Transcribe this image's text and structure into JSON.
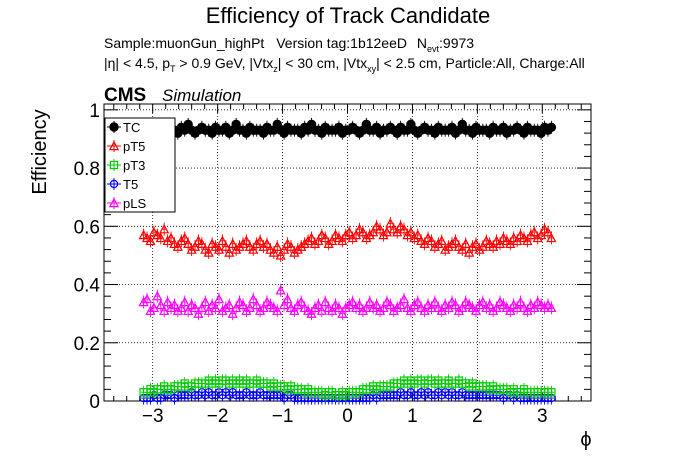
{
  "chart_data": {
    "type": "scatter",
    "title": "Efficiency of Track Candidate",
    "subtitle_line1": {
      "sample_text": "Sample:muonGun_highPt",
      "version_text": "Version tag:1b12eeD",
      "nevt_prefix": "N",
      "nevt_sub": "evt",
      "nevt_value": ":9973"
    },
    "subtitle_line2": {
      "eta_text": "|η| < 4.5, p",
      "pt_sub": "T",
      "pt_cut": " > 0.9 GeV, |Vtx",
      "vtxz_sub": "z",
      "vtxz_cut": "| < 30 cm, |Vtx",
      "vtxxy_sub": "xy",
      "vtxxy_cut": "| < 2.5 cm, Particle:All, Charge:All"
    },
    "cms_label": "CMS",
    "cms_sublabel": "Simulation",
    "xlabel": "ϕ",
    "ylabel": "Efficiency",
    "xlim": [
      -3.75,
      3.75
    ],
    "ylim": [
      0,
      1.02
    ],
    "x_ticks": [
      -3,
      -2,
      -1,
      0,
      1,
      2,
      3
    ],
    "x_tick_labels": [
      "−3",
      "−2",
      "−1",
      "0",
      "1",
      "2",
      "3"
    ],
    "y_ticks": [
      0,
      0.2,
      0.4,
      0.6,
      0.8,
      1
    ],
    "y_tick_labels": [
      "0",
      "0.2",
      "0.4",
      "0.6",
      "0.8",
      "1"
    ],
    "grid": true,
    "legend_position": "top-left",
    "series": [
      {
        "name": "TC",
        "color": "#000000",
        "marker": "filled-circle",
        "x_range": [
          -3.14,
          3.14
        ],
        "n_points": 120,
        "values": [
          0.93,
          0.94,
          0.92,
          0.93,
          0.95,
          0.93,
          0.92,
          0.94,
          0.93,
          0.93,
          0.92,
          0.94,
          0.93,
          0.95,
          0.93,
          0.92,
          0.93,
          0.94,
          0.93,
          0.93,
          0.92,
          0.94,
          0.93,
          0.93,
          0.94,
          0.92,
          0.93,
          0.95,
          0.93,
          0.93,
          0.92,
          0.94,
          0.93,
          0.93,
          0.93,
          0.92,
          0.94,
          0.93,
          0.93,
          0.95,
          0.93,
          0.92,
          0.94,
          0.93,
          0.93,
          0.93,
          0.92,
          0.94,
          0.93,
          0.95,
          0.93,
          0.93,
          0.92,
          0.94,
          0.93,
          0.93,
          0.93,
          0.94,
          0.92,
          0.93,
          0.93,
          0.94,
          0.93,
          0.92,
          0.93,
          0.95,
          0.93,
          0.93,
          0.94,
          0.92,
          0.93,
          0.93,
          0.94,
          0.93,
          0.92,
          0.94,
          0.93,
          0.93,
          0.95,
          0.93,
          0.92,
          0.93,
          0.94,
          0.93,
          0.93,
          0.92,
          0.94,
          0.93,
          0.93,
          0.93,
          0.94,
          0.92,
          0.93,
          0.95,
          0.93,
          0.93,
          0.92,
          0.94,
          0.93,
          0.93,
          0.93,
          0.92,
          0.94,
          0.93,
          0.93,
          0.94,
          0.92,
          0.93,
          0.93,
          0.94,
          0.93,
          0.92,
          0.94,
          0.93,
          0.93,
          0.93,
          0.92,
          0.94,
          0.93,
          0.94
        ]
      },
      {
        "name": "pT5",
        "color": "#ff0000",
        "marker": "open-triangle-up",
        "x_range": [
          -3.14,
          3.14
        ],
        "n_points": 120,
        "values": [
          0.57,
          0.56,
          0.55,
          0.58,
          0.57,
          0.56,
          0.59,
          0.55,
          0.56,
          0.54,
          0.53,
          0.55,
          0.56,
          0.54,
          0.52,
          0.53,
          0.55,
          0.54,
          0.52,
          0.51,
          0.54,
          0.53,
          0.52,
          0.55,
          0.53,
          0.51,
          0.54,
          0.52,
          0.53,
          0.54,
          0.55,
          0.53,
          0.52,
          0.54,
          0.55,
          0.53,
          0.54,
          0.52,
          0.51,
          0.53,
          0.5,
          0.52,
          0.54,
          0.53,
          0.51,
          0.52,
          0.53,
          0.54,
          0.55,
          0.56,
          0.54,
          0.55,
          0.57,
          0.56,
          0.54,
          0.55,
          0.57,
          0.56,
          0.55,
          0.57,
          0.58,
          0.56,
          0.57,
          0.59,
          0.58,
          0.56,
          0.57,
          0.58,
          0.6,
          0.59,
          0.57,
          0.58,
          0.61,
          0.59,
          0.58,
          0.6,
          0.59,
          0.57,
          0.58,
          0.56,
          0.57,
          0.55,
          0.54,
          0.56,
          0.55,
          0.53,
          0.54,
          0.55,
          0.52,
          0.53,
          0.54,
          0.55,
          0.53,
          0.52,
          0.54,
          0.51,
          0.53,
          0.54,
          0.52,
          0.53,
          0.55,
          0.54,
          0.53,
          0.55,
          0.54,
          0.56,
          0.55,
          0.54,
          0.56,
          0.55,
          0.57,
          0.56,
          0.55,
          0.57,
          0.58,
          0.56,
          0.57,
          0.59,
          0.58,
          0.56
        ]
      },
      {
        "name": "pT3",
        "color": "#00cc00",
        "marker": "open-square",
        "x_range": [
          -3.14,
          3.14
        ],
        "n_points": 120,
        "values": [
          0.03,
          0.03,
          0.04,
          0.03,
          0.04,
          0.04,
          0.05,
          0.04,
          0.04,
          0.05,
          0.05,
          0.05,
          0.06,
          0.05,
          0.05,
          0.06,
          0.06,
          0.06,
          0.06,
          0.07,
          0.06,
          0.07,
          0.06,
          0.07,
          0.07,
          0.06,
          0.07,
          0.06,
          0.07,
          0.06,
          0.07,
          0.06,
          0.06,
          0.07,
          0.06,
          0.06,
          0.06,
          0.05,
          0.06,
          0.05,
          0.05,
          0.05,
          0.04,
          0.05,
          0.04,
          0.04,
          0.04,
          0.03,
          0.04,
          0.03,
          0.03,
          0.03,
          0.03,
          0.02,
          0.03,
          0.03,
          0.02,
          0.02,
          0.03,
          0.02,
          0.03,
          0.03,
          0.03,
          0.03,
          0.04,
          0.04,
          0.04,
          0.05,
          0.04,
          0.05,
          0.05,
          0.05,
          0.05,
          0.06,
          0.06,
          0.06,
          0.07,
          0.06,
          0.07,
          0.06,
          0.07,
          0.07,
          0.06,
          0.07,
          0.07,
          0.06,
          0.07,
          0.06,
          0.06,
          0.07,
          0.06,
          0.06,
          0.07,
          0.06,
          0.06,
          0.05,
          0.06,
          0.05,
          0.05,
          0.05,
          0.05,
          0.04,
          0.05,
          0.04,
          0.04,
          0.04,
          0.04,
          0.03,
          0.04,
          0.03,
          0.03,
          0.04,
          0.03,
          0.03,
          0.03,
          0.03,
          0.03,
          0.03,
          0.03,
          0.03
        ]
      },
      {
        "name": "T5",
        "color": "#0000ff",
        "marker": "open-circle",
        "x_range": [
          -3.14,
          3.14
        ],
        "n_points": 120,
        "values": [
          0.01,
          0.01,
          0.01,
          0.02,
          0.01,
          0.01,
          0.02,
          0.02,
          0.02,
          0.01,
          0.02,
          0.02,
          0.02,
          0.02,
          0.03,
          0.02,
          0.02,
          0.03,
          0.02,
          0.03,
          0.02,
          0.02,
          0.03,
          0.02,
          0.03,
          0.02,
          0.03,
          0.02,
          0.02,
          0.02,
          0.03,
          0.02,
          0.02,
          0.02,
          0.03,
          0.02,
          0.02,
          0.02,
          0.02,
          0.02,
          0.02,
          0.01,
          0.02,
          0.02,
          0.01,
          0.01,
          0.01,
          0.01,
          0.01,
          0.01,
          0.01,
          0.01,
          0.01,
          0.01,
          0.01,
          0.01,
          0.01,
          0.01,
          0.01,
          0.01,
          0.01,
          0.01,
          0.01,
          0.01,
          0.01,
          0.01,
          0.01,
          0.02,
          0.01,
          0.02,
          0.02,
          0.02,
          0.02,
          0.02,
          0.02,
          0.03,
          0.02,
          0.02,
          0.03,
          0.02,
          0.02,
          0.03,
          0.02,
          0.03,
          0.02,
          0.02,
          0.03,
          0.02,
          0.03,
          0.02,
          0.03,
          0.02,
          0.02,
          0.03,
          0.02,
          0.02,
          0.02,
          0.02,
          0.02,
          0.02,
          0.02,
          0.02,
          0.02,
          0.02,
          0.02,
          0.01,
          0.02,
          0.02,
          0.01,
          0.02,
          0.01,
          0.01,
          0.01,
          0.01,
          0.01,
          0.01,
          0.01,
          0.01,
          0.01,
          0.01
        ]
      },
      {
        "name": "pLS",
        "color": "#ff00ff",
        "marker": "open-triangle-up",
        "x_range": [
          -3.14,
          3.14
        ],
        "n_points": 120,
        "values": [
          0.34,
          0.35,
          0.31,
          0.32,
          0.36,
          0.33,
          0.31,
          0.34,
          0.32,
          0.33,
          0.31,
          0.32,
          0.34,
          0.31,
          0.33,
          0.32,
          0.3,
          0.32,
          0.34,
          0.31,
          0.33,
          0.32,
          0.35,
          0.31,
          0.32,
          0.33,
          0.3,
          0.32,
          0.34,
          0.33,
          0.31,
          0.32,
          0.35,
          0.33,
          0.31,
          0.32,
          0.34,
          0.33,
          0.32,
          0.31,
          0.38,
          0.33,
          0.35,
          0.32,
          0.31,
          0.33,
          0.34,
          0.32,
          0.31,
          0.3,
          0.32,
          0.33,
          0.31,
          0.34,
          0.32,
          0.31,
          0.33,
          0.32,
          0.3,
          0.32,
          0.33,
          0.34,
          0.32,
          0.33,
          0.31,
          0.32,
          0.34,
          0.32,
          0.33,
          0.31,
          0.32,
          0.34,
          0.33,
          0.31,
          0.32,
          0.33,
          0.35,
          0.32,
          0.31,
          0.33,
          0.34,
          0.32,
          0.31,
          0.33,
          0.32,
          0.34,
          0.32,
          0.31,
          0.33,
          0.32,
          0.34,
          0.33,
          0.31,
          0.32,
          0.34,
          0.33,
          0.32,
          0.31,
          0.33,
          0.34,
          0.32,
          0.33,
          0.31,
          0.32,
          0.34,
          0.33,
          0.32,
          0.31,
          0.33,
          0.32,
          0.34,
          0.32,
          0.31,
          0.33,
          0.32,
          0.34,
          0.33,
          0.32,
          0.33,
          0.32
        ]
      }
    ]
  }
}
